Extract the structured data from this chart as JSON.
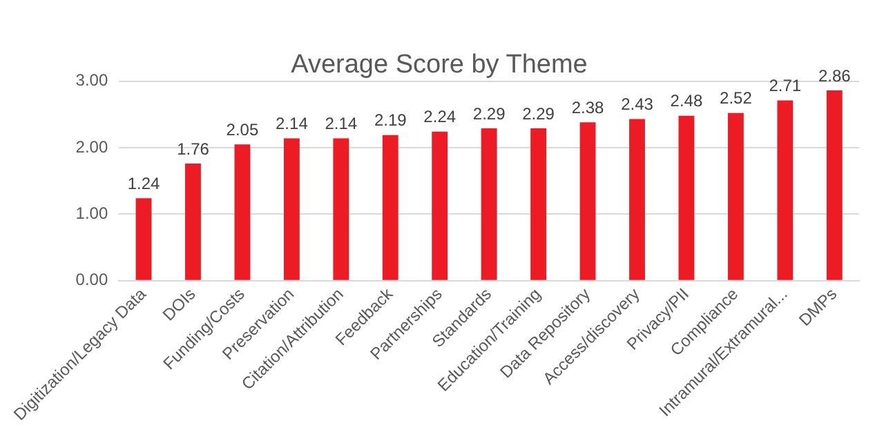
{
  "chart_data": {
    "type": "bar",
    "title": "Average Score by Theme",
    "categories": [
      "Digitization/Legacy Data",
      "DOIs",
      "Funding/Costs",
      "Preservation",
      "Citation/Attribution",
      "Feedback",
      "Partnerships",
      "Standards",
      "Education/Training",
      "Data Repository",
      "Access/discovery",
      "Privacy/PII",
      "Compliance",
      "Intramural/Extramural...",
      "DMPs"
    ],
    "values": [
      1.24,
      1.76,
      2.05,
      2.14,
      2.14,
      2.19,
      2.24,
      2.29,
      2.29,
      2.38,
      2.43,
      2.48,
      2.52,
      2.71,
      2.86
    ],
    "color": "#ed1c24",
    "ylim": [
      0,
      3
    ],
    "yticks": [
      {
        "value": 0,
        "label": "0.00"
      },
      {
        "value": 1,
        "label": "1.00"
      },
      {
        "value": 2,
        "label": "2.00"
      },
      {
        "value": 3,
        "label": "3.00"
      }
    ],
    "grid": "y",
    "data_labels": true
  }
}
